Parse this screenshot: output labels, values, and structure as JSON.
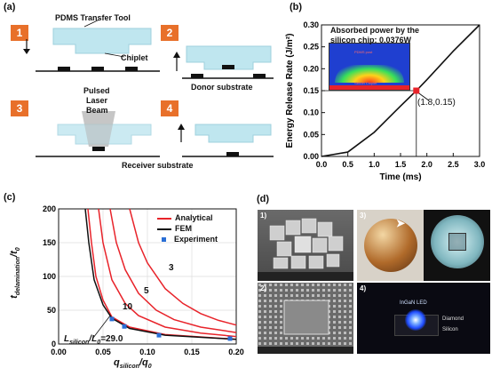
{
  "panel_a": {
    "label": "(a)",
    "steps": [
      "1",
      "2",
      "3",
      "4"
    ],
    "tool_label": "PDMS Transfer Tool",
    "chiplet_label": "Chiplet",
    "donor_label": "Donor substrate",
    "laser_label_1": "Pulsed",
    "laser_label_2": "Laser",
    "laser_label_3": "Beam",
    "receiver_label": "Receiver substrate",
    "colors": {
      "tool": "#bfe6ef",
      "step_box": "#e8702a",
      "chip": "#111111"
    }
  },
  "panel_b": {
    "label": "(b)",
    "inset_text_1": "Absorbed power by the",
    "inset_text_2": "silicon chip: 0.0376W",
    "inset_sub_1": "PDMS post",
    "inset_sub_2": "Silicon Chiplet",
    "point_label": "(1.8,0.15)"
  },
  "panel_c": {
    "label": "(c)",
    "legend": [
      "Analytical",
      "FEM",
      "Experiment"
    ],
    "curve_labels": [
      "3",
      "5",
      "10"
    ],
    "ratio_label": "29.0"
  },
  "panel_d": {
    "label": "(d)",
    "sub_labels": [
      "1)",
      "2)",
      "3)",
      "4)"
    ],
    "led_label": "InGaN LED",
    "diamond_label": "Diamond",
    "silicon_label": "Silicon"
  },
  "chart_data": [
    {
      "type": "line",
      "title": "",
      "xlabel": "Time (ms)",
      "ylabel": "Energy Release Rate (J/m²)",
      "xlim": [
        0.0,
        3.0
      ],
      "ylim": [
        0.0,
        0.3
      ],
      "x_ticks": [
        "0.0",
        "0.5",
        "1.0",
        "1.5",
        "2.0",
        "2.5",
        "3.0"
      ],
      "y_ticks": [
        "0.00",
        "0.05",
        "0.10",
        "0.15",
        "0.20",
        "0.25",
        "0.30"
      ],
      "series": [
        {
          "x": [
            0.0,
            0.5,
            1.0,
            1.5,
            1.8,
            2.0,
            2.5,
            3.0
          ],
          "y": [
            0.0,
            0.01,
            0.055,
            0.115,
            0.15,
            0.175,
            0.24,
            0.3
          ]
        }
      ],
      "highlight": {
        "x": 1.8,
        "y": 0.15,
        "color": "#e8232a"
      }
    },
    {
      "type": "line",
      "title": "",
      "xlim": [
        0.0,
        0.2
      ],
      "ylim": [
        0,
        200
      ],
      "x_ticks": [
        "0.00",
        "0.05",
        "0.10",
        "0.15",
        "0.20"
      ],
      "y_ticks": [
        "0",
        "50",
        "100",
        "150",
        "200"
      ],
      "series": [
        {
          "name": "Analytical",
          "label": "3",
          "color": "#e8232a",
          "x": [
            0.08,
            0.09,
            0.1,
            0.12,
            0.14,
            0.16,
            0.18,
            0.2
          ],
          "y": [
            200,
            150,
            120,
            82,
            60,
            45,
            35,
            28
          ]
        },
        {
          "name": "Analytical",
          "label": "5",
          "color": "#e8232a",
          "x": [
            0.058,
            0.065,
            0.075,
            0.09,
            0.11,
            0.13,
            0.16,
            0.2
          ],
          "y": [
            200,
            150,
            110,
            75,
            50,
            36,
            25,
            17
          ]
        },
        {
          "name": "Analytical",
          "label": "10",
          "color": "#e8232a",
          "x": [
            0.045,
            0.05,
            0.06,
            0.075,
            0.09,
            0.12,
            0.16,
            0.2
          ],
          "y": [
            200,
            150,
            95,
            60,
            42,
            25,
            16,
            11
          ]
        },
        {
          "name": "Analytical",
          "label": "29.0",
          "color": "#e8232a",
          "x": [
            0.033,
            0.037,
            0.042,
            0.05,
            0.06,
            0.08,
            0.12,
            0.2
          ],
          "y": [
            200,
            150,
            100,
            65,
            40,
            25,
            14,
            7
          ]
        },
        {
          "name": "FEM",
          "color": "#111111",
          "x": [
            0.03,
            0.034,
            0.04,
            0.05,
            0.06,
            0.08,
            0.12,
            0.2
          ],
          "y": [
            200,
            150,
            95,
            58,
            38,
            23,
            13,
            7
          ]
        }
      ],
      "points": {
        "name": "Experiment",
        "color": "#2a6fd6",
        "x": [
          0.06,
          0.074,
          0.113,
          0.193
        ],
        "y": [
          37,
          26,
          13,
          8
        ]
      }
    }
  ]
}
